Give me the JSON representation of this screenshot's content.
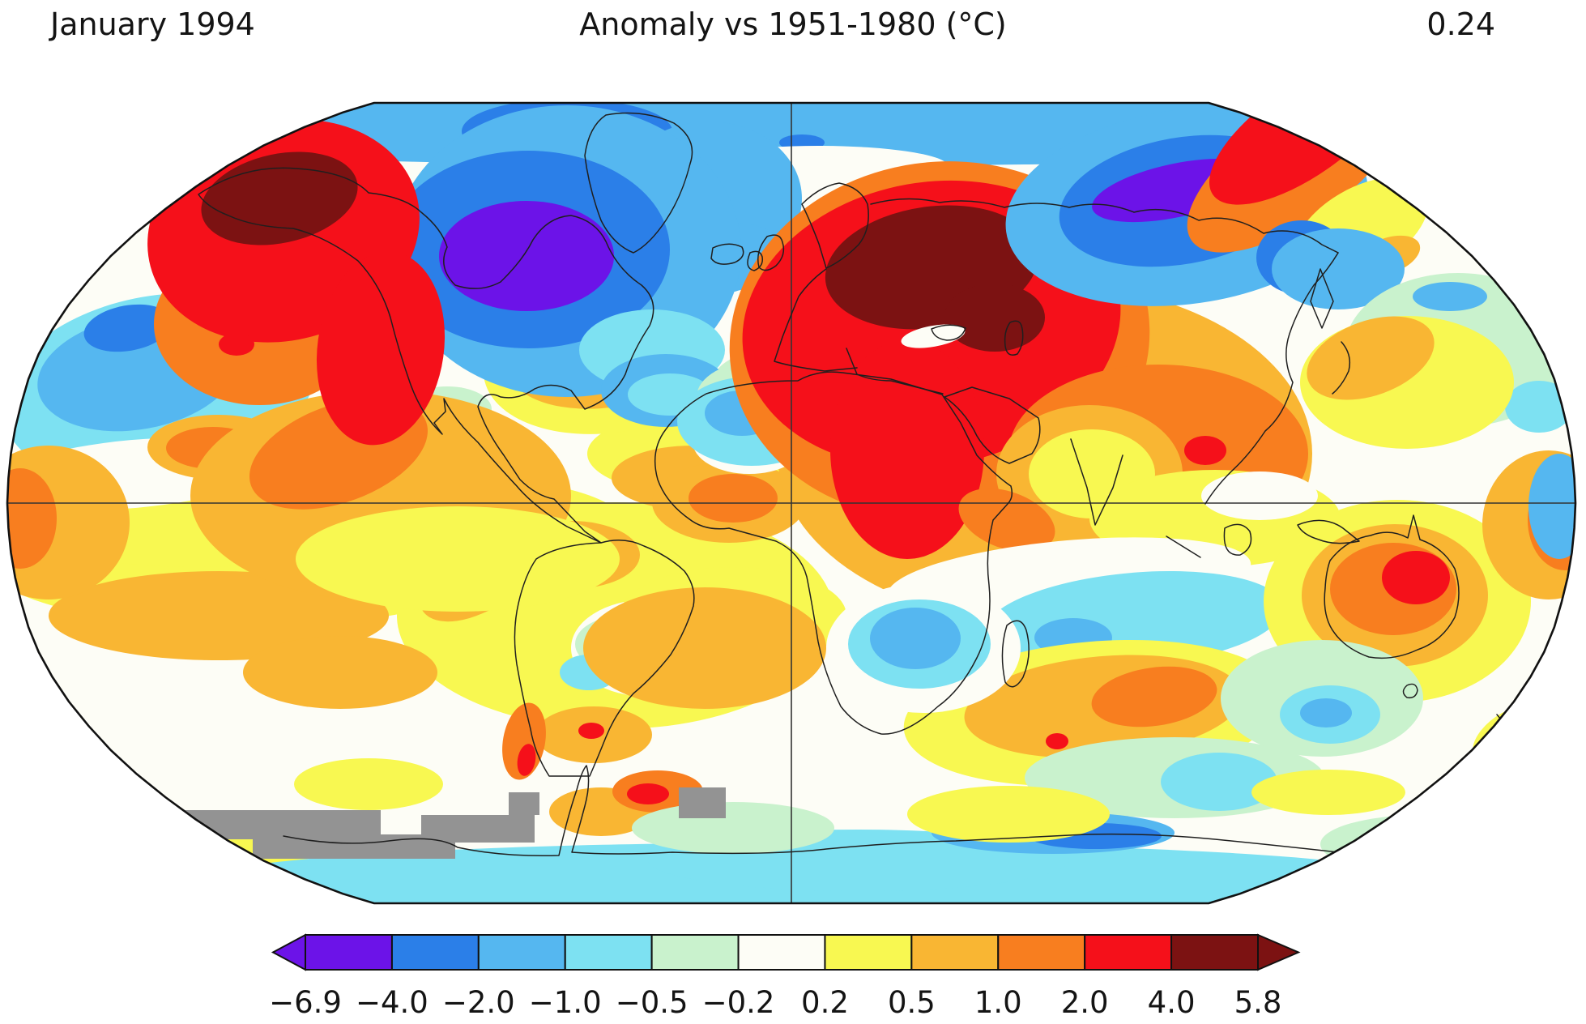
{
  "header": {
    "date_label": "January 1994",
    "title": "Anomaly vs 1951-1980 (°C)",
    "global_mean": "0.24"
  },
  "chart_data": {
    "type": "heatmap",
    "title": "Anomaly vs 1951-1980 (°C)",
    "date_label": "January 1994",
    "global_mean_anomaly_c": 0.24,
    "baseline_period": "1951-1980",
    "units": "°C",
    "projection": "robinson",
    "graticule": {
      "equator": true,
      "central_meridian": true
    },
    "map_base_color": "#FDFDF6",
    "missing_data_color": "#939393",
    "coast_color": "#1f1f1f",
    "outline_color": "#111111",
    "palette": {
      "purple": "#6C13E8",
      "blue": "#2B7FE8",
      "lightblue": "#55B7F0",
      "cyan": "#7DE1F2",
      "palegreen": "#C9F2CD",
      "white": "#FDFDF6",
      "yellow": "#F8F851",
      "golden": "#F9B633",
      "orange": "#F87E1F",
      "red": "#F5101A",
      "darkred": "#7C1212"
    },
    "colorbar": {
      "orientation": "horizontal",
      "levels": [
        -6.9,
        -4.0,
        -2.0,
        -1.0,
        -0.5,
        -0.2,
        0.2,
        0.5,
        1.0,
        2.0,
        4.0,
        5.8
      ],
      "tick_labels": [
        "−6.9",
        "−4.0",
        "−2.0",
        "−1.0",
        "−0.5",
        "−0.2",
        "0.2",
        "0.5",
        "1.0",
        "2.0",
        "4.0",
        "5.8"
      ],
      "segment_colors": [
        "#6C13E8",
        "#2B7FE8",
        "#55B7F0",
        "#7DE1F2",
        "#C9F2CD",
        "#FDFDF6",
        "#F8F851",
        "#F9B633",
        "#F87E1F",
        "#F5101A",
        "#7C1212"
      ],
      "left_arrow_color": "#6C13E8",
      "right_arrow_color": "#7C1212"
    },
    "features": [
      [
        "yellow",
        300,
        690,
        320,
        85,
        0
      ],
      [
        "yellow",
        240,
        640,
        230,
        60,
        0
      ],
      [
        "golden",
        270,
        760,
        210,
        55,
        0
      ],
      [
        "yellow",
        520,
        645,
        250,
        60,
        0
      ],
      [
        "yellow",
        760,
        760,
        270,
        140,
        0
      ],
      [
        "yellow",
        1300,
        655,
        210,
        60,
        0
      ],
      [
        "white",
        560,
        612,
        120,
        45,
        0
      ],
      [
        "palegreen",
        585,
        618,
        52,
        22,
        0
      ],
      [
        "white",
        350,
        960,
        260,
        55,
        0
      ],
      [
        "white",
        600,
        950,
        150,
        40,
        0
      ],
      [
        "yellow",
        300,
        1050,
        85,
        30,
        0
      ],
      [
        "golden",
        420,
        830,
        120,
        45,
        0
      ],
      [
        "golden",
        600,
        700,
        95,
        48,
        -35
      ],
      [
        "orange",
        575,
        690,
        28,
        15,
        -30
      ],
      [
        "orange",
        593,
        722,
        20,
        12,
        -30
      ],
      [
        "golden",
        705,
        685,
        85,
        42,
        0
      ],
      [
        "white",
        800,
        800,
        95,
        60,
        0
      ],
      [
        "palegreen",
        770,
        795,
        60,
        35,
        0
      ],
      [
        "cyan",
        727,
        830,
        36,
        22,
        0
      ],
      [
        "yellow",
        905,
        760,
        140,
        60,
        0
      ],
      [
        "golden",
        870,
        800,
        150,
        75,
        0
      ],
      [
        "golden",
        733,
        907,
        72,
        35,
        0
      ],
      [
        "red",
        730,
        902,
        16,
        10,
        0
      ],
      [
        "orange",
        647,
        915,
        26,
        48,
        10
      ],
      [
        "red",
        650,
        938,
        11,
        20,
        10
      ],
      [
        "yellow",
        855,
        560,
        130,
        50,
        0
      ],
      [
        "golden",
        855,
        590,
        100,
        40,
        0
      ],
      [
        "golden",
        900,
        620,
        95,
        50,
        0
      ],
      [
        "orange",
        905,
        615,
        55,
        30,
        0
      ],
      [
        "cyan",
        195,
        480,
        195,
        115,
        -10
      ],
      [
        "lightblue",
        170,
        460,
        125,
        70,
        -10
      ],
      [
        "blue",
        158,
        405,
        55,
        28,
        -10
      ],
      [
        "white",
        165,
        585,
        175,
        42,
        -5
      ],
      [
        "golden",
        270,
        552,
        88,
        40,
        0
      ],
      [
        "orange",
        263,
        553,
        58,
        26,
        0
      ],
      [
        "golden",
        60,
        645,
        100,
        95,
        0
      ],
      [
        "orange",
        25,
        640,
        45,
        62,
        0
      ],
      [
        "white",
        540,
        500,
        140,
        70,
        0
      ],
      [
        "palegreen",
        552,
        505,
        55,
        28,
        0
      ],
      [
        "lightblue",
        977,
        160,
        990,
        45,
        0
      ],
      [
        "white",
        240,
        172,
        70,
        24,
        0
      ],
      [
        "blue",
        700,
        162,
        130,
        40,
        0
      ],
      [
        "blue",
        990,
        176,
        28,
        10,
        0
      ],
      [
        "white",
        1010,
        205,
        160,
        25,
        0
      ],
      [
        "blue",
        745,
        240,
        128,
        100,
        0
      ],
      [
        "lightblue",
        875,
        245,
        115,
        95,
        0
      ],
      [
        "cyan",
        812,
        382,
        112,
        55,
        0
      ],
      [
        "lightblue",
        905,
        330,
        80,
        55,
        0
      ],
      [
        "yellow",
        760,
        438,
        165,
        95,
        -10
      ],
      [
        "golden",
        755,
        432,
        132,
        70,
        -10
      ],
      [
        "orange",
        716,
        420,
        28,
        20,
        0
      ],
      [
        "white",
        940,
        435,
        95,
        80,
        0
      ],
      [
        "palegreen",
        952,
        472,
        72,
        40,
        0
      ],
      [
        "yellow",
        888,
        298,
        16,
        11,
        0
      ],
      [
        "lightblue",
        700,
        310,
        215,
        180,
        0
      ],
      [
        "blue",
        652,
        308,
        175,
        122,
        0
      ],
      [
        "purple",
        650,
        316,
        108,
        68,
        0
      ],
      [
        "golden",
        470,
        612,
        235,
        130,
        0
      ],
      [
        "yellow",
        565,
        690,
        200,
        65,
        0
      ],
      [
        "orange",
        418,
        560,
        115,
        60,
        -20
      ],
      [
        "orange",
        320,
        400,
        130,
        100,
        0
      ],
      [
        "red",
        350,
        285,
        170,
        135,
        -15
      ],
      [
        "red",
        470,
        430,
        78,
        120,
        8
      ],
      [
        "darkred",
        345,
        245,
        98,
        55,
        -12
      ],
      [
        "red",
        292,
        425,
        22,
        14,
        0
      ],
      [
        "cyan",
        805,
        432,
        90,
        50,
        0
      ],
      [
        "lightblue",
        822,
        482,
        80,
        45,
        0
      ],
      [
        "cyan",
        827,
        487,
        52,
        26,
        0
      ],
      [
        "golden",
        1290,
        560,
        330,
        210,
        0
      ],
      [
        "golden",
        1130,
        460,
        170,
        115,
        0
      ],
      [
        "palegreen",
        940,
        490,
        80,
        45,
        0
      ],
      [
        "white",
        925,
        545,
        70,
        40,
        0
      ],
      [
        "cyan",
        928,
        520,
        92,
        55,
        0
      ],
      [
        "lightblue",
        916,
        510,
        46,
        28,
        0
      ],
      [
        "orange",
        1160,
        420,
        260,
        220,
        -8
      ],
      [
        "red",
        1150,
        400,
        235,
        175,
        -10
      ],
      [
        "red",
        1120,
        555,
        95,
        135,
        0
      ],
      [
        "darkred",
        1150,
        330,
        132,
        75,
        -8
      ],
      [
        "darkred",
        1228,
        392,
        62,
        42,
        0
      ],
      [
        "white",
        1152,
        415,
        40,
        13,
        -10
      ],
      [
        "orange",
        1430,
        560,
        185,
        110,
        0
      ],
      [
        "golden",
        1345,
        585,
        115,
        85,
        0
      ],
      [
        "yellow",
        1348,
        585,
        78,
        55,
        0
      ],
      [
        "red",
        1488,
        556,
        26,
        18,
        0
      ],
      [
        "lightblue",
        1465,
        255,
        225,
        120,
        -8
      ],
      [
        "blue",
        1458,
        248,
        152,
        78,
        -10
      ],
      [
        "purple",
        1452,
        235,
        106,
        33,
        -12
      ],
      [
        "orange",
        1598,
        208,
        155,
        65,
        -35
      ],
      [
        "red",
        1608,
        163,
        135,
        55,
        -35
      ],
      [
        "yellow",
        1680,
        282,
        92,
        50,
        -30
      ],
      [
        "golden",
        1713,
        316,
        42,
        22,
        -20
      ],
      [
        "blue",
        1607,
        318,
        56,
        46,
        0
      ],
      [
        "lightblue",
        1652,
        332,
        82,
        50,
        0
      ],
      [
        "palegreen",
        1800,
        432,
        140,
        95,
        0
      ],
      [
        "cyan",
        1900,
        502,
        42,
        32,
        0
      ],
      [
        "lightblue",
        1790,
        366,
        46,
        18,
        0
      ],
      [
        "yellow",
        1737,
        472,
        132,
        82,
        0
      ],
      [
        "golden",
        1692,
        442,
        82,
        46,
        -20
      ],
      [
        "yellow",
        1500,
        640,
        155,
        60,
        0
      ],
      [
        "white",
        1555,
        612,
        72,
        30,
        0
      ],
      [
        "orange",
        1648,
        652,
        38,
        16,
        -20
      ],
      [
        "orange",
        1243,
        642,
        62,
        35,
        20
      ],
      [
        "white",
        1320,
        715,
        225,
        48,
        -5
      ],
      [
        "cyan",
        1400,
        765,
        185,
        58,
        -5
      ],
      [
        "lightblue",
        1325,
        787,
        48,
        24,
        0
      ],
      [
        "yellow",
        1350,
        880,
        235,
        88,
        -5
      ],
      [
        "golden",
        1362,
        872,
        172,
        62,
        -5
      ],
      [
        "orange",
        1425,
        860,
        78,
        36,
        -8
      ],
      [
        "red",
        1305,
        915,
        14,
        10,
        0
      ],
      [
        "palegreen",
        1450,
        960,
        185,
        50,
        0
      ],
      [
        "cyan",
        1505,
        965,
        72,
        36,
        0
      ],
      [
        "white",
        1140,
        800,
        120,
        80,
        0
      ],
      [
        "cyan",
        1135,
        795,
        88,
        55,
        0
      ],
      [
        "lightblue",
        1130,
        788,
        56,
        38,
        0
      ],
      [
        "yellow",
        1725,
        742,
        165,
        125,
        0
      ],
      [
        "golden",
        1722,
        735,
        115,
        88,
        0
      ],
      [
        "orange",
        1720,
        727,
        78,
        57,
        0
      ],
      [
        "red",
        1748,
        713,
        42,
        33,
        0
      ],
      [
        "palegreen",
        1632,
        862,
        125,
        72,
        0
      ],
      [
        "cyan",
        1642,
        882,
        62,
        36,
        0
      ],
      [
        "lightblue",
        1637,
        880,
        32,
        18,
        0
      ],
      [
        "yellow",
        1853,
        905,
        42,
        20,
        -40
      ],
      [
        "golden",
        1860,
        898,
        20,
        11,
        -40
      ],
      [
        "golden",
        1912,
        648,
        82,
        92,
        0
      ],
      [
        "orange",
        1932,
        642,
        46,
        62,
        0
      ],
      [
        "lightblue",
        1925,
        625,
        38,
        65,
        0
      ],
      [
        "yellow",
        1870,
        962,
        62,
        26,
        -40
      ],
      [
        "cyan",
        1000,
        1088,
        760,
        48,
        0
      ],
      [
        "cyan",
        1060,
        1062,
        260,
        38,
        0
      ],
      [
        "lightblue",
        1300,
        1028,
        150,
        26,
        0
      ],
      [
        "blue",
        1352,
        1032,
        82,
        16,
        0
      ],
      [
        "yellow",
        455,
        968,
        92,
        32,
        0
      ],
      [
        "yellow",
        1245,
        1005,
        125,
        35,
        0
      ],
      [
        "yellow",
        1640,
        978,
        95,
        28,
        0
      ],
      [
        "golden",
        742,
        1002,
        64,
        30,
        0
      ],
      [
        "orange",
        812,
        977,
        56,
        26,
        0
      ],
      [
        "red",
        800,
        980,
        26,
        13,
        0
      ],
      [
        "palegreen",
        905,
        1022,
        125,
        32,
        0
      ],
      [
        "palegreen",
        1755,
        1042,
        125,
        36,
        0
      ]
    ],
    "missing_patches": [
      [
        215,
        1000,
        255,
        36
      ],
      [
        312,
        1030,
        250,
        30
      ],
      [
        520,
        1006,
        140,
        34
      ],
      [
        628,
        978,
        38,
        28
      ],
      [
        838,
        972,
        58,
        38
      ]
    ]
  }
}
